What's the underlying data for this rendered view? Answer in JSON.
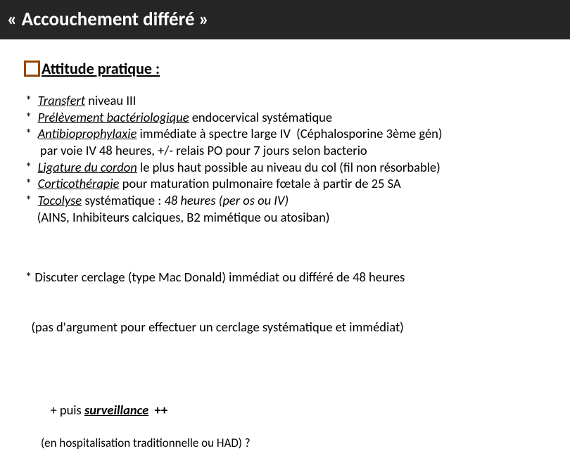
{
  "header": {
    "title": " « Accouchement différé »"
  },
  "subtitle": {
    "text": " Attitude pratique :"
  },
  "colors": {
    "header_bg": "#262626",
    "header_text": "#ffffff",
    "bullet_border": "#974706",
    "body_text": "#000000",
    "page_bg": "#ffffff"
  },
  "list": {
    "asterisk": "*  ",
    "items": [
      {
        "spans": [
          {
            "t": "Transfert",
            "s": [
              "it",
              "u"
            ]
          },
          {
            "t": " niveau III"
          }
        ]
      },
      {
        "spans": [
          {
            "t": "Prélèvement bactériologique",
            "s": [
              "it",
              "u"
            ]
          },
          {
            "t": " endocervical systématique"
          }
        ]
      },
      {
        "spans": [
          {
            "t": "Antibioprophylaxie",
            "s": [
              "it",
              "u"
            ]
          },
          {
            "t": " immédiate à spectre large IV  (Céphalosporine 3ème gén)"
          }
        ],
        "cont": "     par voie IV 48 heures, +/- relais PO pour 7 jours selon bacterio"
      },
      {
        "spans": [
          {
            "t": "Ligature du cordon",
            "s": [
              "it",
              "u"
            ]
          },
          {
            "t": " le plus haut possible au niveau du col (fil non résorbable)"
          }
        ]
      },
      {
        "spans": [
          {
            "t": "Corticothérapie",
            "s": [
              "it",
              "u"
            ]
          },
          {
            "t": " pour maturation pulmonaire fœtale à partir de 25 SA"
          }
        ]
      },
      {
        "spans": [
          {
            "t": "Tocolyse",
            "s": [
              "it",
              "u"
            ]
          },
          {
            "t": " systématique : "
          },
          {
            "t": "48 heures (per os ou IV)",
            "s": [
              "it"
            ]
          }
        ],
        "cont": "    (AINS, Inhibiteurs calciques, B2 mimétique ou atosiban)"
      }
    ]
  },
  "discuss": {
    "line1": "* Discuter cerclage (type Mac Donald) immédiat ou différé de 48 heures",
    "line2": "  (pas d'argument pour effectuer un cerclage systématique et immédiat)"
  },
  "surveillance": {
    "prefix": "+ puis ",
    "word": "surveillance",
    "suffix": "  ++",
    "sub": "(en hospitalisation traditionnelle ou HAD) ?"
  }
}
